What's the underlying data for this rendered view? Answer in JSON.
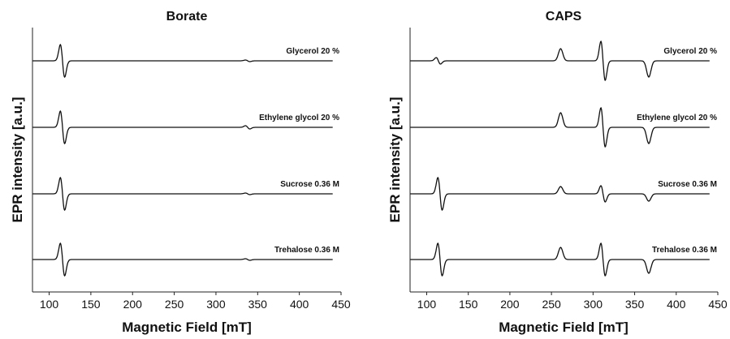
{
  "chart_data": [
    {
      "type": "line",
      "title": "Borate",
      "xlabel": "Magnetic Field [mT]",
      "ylabel": "EPR intensity [a.u.]",
      "xlim": [
        80,
        450
      ],
      "xticks": [
        100,
        150,
        200,
        250,
        300,
        350,
        400,
        450
      ],
      "y_ticks_shown": false,
      "grid": false,
      "legend": "none (each trace labeled at right end)",
      "series": [
        {
          "name": "Glycerol 20 %",
          "features": [
            {
              "type": "derivative",
              "center": 116,
              "amp": 1.0
            },
            {
              "type": "derivative",
              "center": 338,
              "amp": 0.05
            }
          ]
        },
        {
          "name": "Ethylene glycol 20 %",
          "features": [
            {
              "type": "derivative",
              "center": 116,
              "amp": 1.0
            },
            {
              "type": "derivative",
              "center": 338,
              "amp": 0.1
            }
          ]
        },
        {
          "name": "Sucrose 0.36 M",
          "features": [
            {
              "type": "derivative",
              "center": 116,
              "amp": 1.0
            },
            {
              "type": "derivative",
              "center": 338,
              "amp": 0.05
            }
          ]
        },
        {
          "name": "Trehalose 0.36 M",
          "features": [
            {
              "type": "derivative",
              "center": 116,
              "amp": 1.0
            },
            {
              "type": "derivative",
              "center": 338,
              "amp": 0.05
            }
          ]
        }
      ]
    },
    {
      "type": "line",
      "title": "CAPS",
      "xlabel": "Magnetic Field [mT]",
      "ylabel": "EPR intensity [a.u.]",
      "xlim": [
        80,
        450
      ],
      "xticks": [
        100,
        150,
        200,
        250,
        300,
        350,
        400,
        450
      ],
      "y_ticks_shown": false,
      "grid": false,
      "legend": "none (each trace labeled at right end)",
      "series": [
        {
          "name": "Glycerol 20 %",
          "features": [
            {
              "type": "derivative",
              "center": 114,
              "amp": 0.2
            },
            {
              "type": "peak",
              "center": 261,
              "amp": 0.75
            },
            {
              "type": "derivative",
              "center": 312,
              "amp": 1.2
            },
            {
              "type": "dip",
              "center": 367,
              "amp": 1.0
            }
          ]
        },
        {
          "name": "Ethylene glycol 20 %",
          "features": [
            {
              "type": "peak",
              "center": 261,
              "amp": 0.9
            },
            {
              "type": "derivative",
              "center": 312,
              "amp": 1.2
            },
            {
              "type": "dip",
              "center": 367,
              "amp": 1.0
            }
          ]
        },
        {
          "name": "Sucrose 0.36 M",
          "features": [
            {
              "type": "derivative",
              "center": 116,
              "amp": 1.0
            },
            {
              "type": "peak",
              "center": 261,
              "amp": 0.45
            },
            {
              "type": "derivative",
              "center": 312,
              "amp": 0.5
            },
            {
              "type": "dip",
              "center": 367,
              "amp": 0.45
            }
          ]
        },
        {
          "name": "Trehalose 0.36 M",
          "features": [
            {
              "type": "derivative",
              "center": 116,
              "amp": 1.0
            },
            {
              "type": "peak",
              "center": 261,
              "amp": 0.75
            },
            {
              "type": "derivative",
              "center": 312,
              "amp": 1.0
            },
            {
              "type": "dip",
              "center": 367,
              "amp": 0.85
            }
          ]
        }
      ]
    }
  ]
}
